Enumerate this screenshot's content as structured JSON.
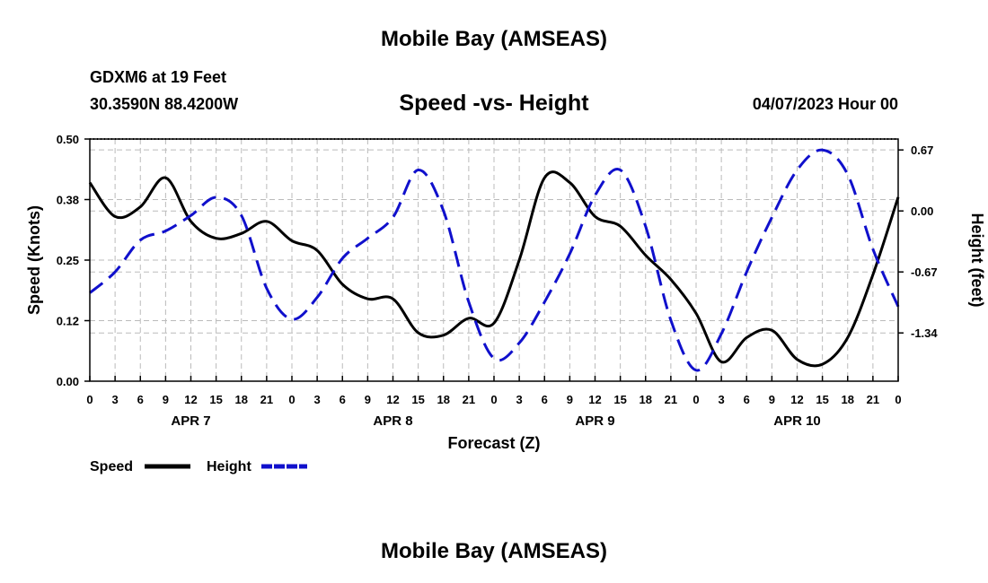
{
  "header": {
    "title": "Mobile Bay (AMSEAS)",
    "station": "GDXM6 at 19 Feet",
    "coords": "30.3590N  88.4200W",
    "date": "04/07/2023 Hour 00",
    "footer_title": "Mobile Bay (AMSEAS)"
  },
  "chart_data": {
    "type": "line",
    "title": "Speed -vs- Height",
    "xlabel": "Forecast (Z)",
    "ylabel": "Speed (Knots)",
    "y2label": "Height (feet)",
    "xlim": [
      0,
      96
    ],
    "ylim": [
      0,
      0.5
    ],
    "y2lim": [
      -1.87,
      0.79
    ],
    "x_ticks": [
      0,
      3,
      6,
      9,
      12,
      15,
      18,
      21,
      24,
      27,
      30,
      33,
      36,
      39,
      42,
      45,
      48,
      51,
      54,
      57,
      60,
      63,
      66,
      69,
      72,
      75,
      78,
      81,
      84,
      87,
      90,
      93,
      96
    ],
    "x_tick_labels": [
      "0",
      "3",
      "6",
      "9",
      "12",
      "15",
      "18",
      "21",
      "0",
      "3",
      "6",
      "9",
      "12",
      "15",
      "18",
      "21",
      "0",
      "3",
      "6",
      "9",
      "12",
      "15",
      "18",
      "21",
      "0",
      "3",
      "6",
      "9",
      "12",
      "15",
      "18",
      "21",
      "0"
    ],
    "y_ticks": [
      0,
      0.125,
      0.25,
      0.375,
      0.5
    ],
    "y_tick_labels": [
      "0.00",
      "0.12",
      "0.25",
      "0.38",
      "0.50"
    ],
    "y2_ticks": [
      -1.34,
      -0.67,
      0.0,
      0.67
    ],
    "y2_tick_labels": [
      "-1.34",
      "-0.67",
      "0.00",
      "0.67"
    ],
    "day_labels": [
      {
        "x": 12,
        "label": "APR 7"
      },
      {
        "x": 36,
        "label": "APR 8"
      },
      {
        "x": 60,
        "label": "APR 9"
      },
      {
        "x": 84,
        "label": "APR 10"
      }
    ],
    "grid": true,
    "legend_position": "bottom-left",
    "series": [
      {
        "name": "Speed",
        "axis": "left",
        "color": "#000000",
        "style": "solid",
        "x": [
          0,
          3,
          6,
          9,
          12,
          15,
          18,
          21,
          24,
          27,
          30,
          33,
          36,
          39,
          42,
          45,
          48,
          51,
          54,
          57,
          60,
          63,
          66,
          69,
          72,
          75,
          78,
          81,
          84,
          87,
          90,
          93,
          96
        ],
        "values": [
          0.41,
          0.34,
          0.36,
          0.42,
          0.33,
          0.295,
          0.305,
          0.33,
          0.29,
          0.27,
          0.2,
          0.17,
          0.17,
          0.1,
          0.095,
          0.13,
          0.12,
          0.25,
          0.42,
          0.41,
          0.34,
          0.32,
          0.26,
          0.21,
          0.14,
          0.04,
          0.09,
          0.105,
          0.045,
          0.035,
          0.09,
          0.22,
          0.38
        ]
      },
      {
        "name": "Height",
        "axis": "right",
        "color": "#1010cc",
        "style": "dashed",
        "x": [
          0,
          3,
          6,
          9,
          12,
          15,
          18,
          21,
          24,
          27,
          30,
          33,
          36,
          39,
          42,
          45,
          48,
          51,
          54,
          57,
          60,
          63,
          66,
          69,
          72,
          75,
          78,
          81,
          84,
          87,
          90,
          93,
          96
        ],
        "values": [
          -0.9,
          -0.67,
          -0.32,
          -0.22,
          -0.05,
          0.15,
          -0.05,
          -0.85,
          -1.19,
          -0.95,
          -0.52,
          -0.3,
          -0.07,
          0.45,
          0.0,
          -1.0,
          -1.62,
          -1.45,
          -1.0,
          -0.47,
          0.17,
          0.45,
          -0.17,
          -1.2,
          -1.75,
          -1.35,
          -0.67,
          -0.07,
          0.45,
          0.67,
          0.4,
          -0.42,
          -1.05
        ]
      }
    ]
  }
}
